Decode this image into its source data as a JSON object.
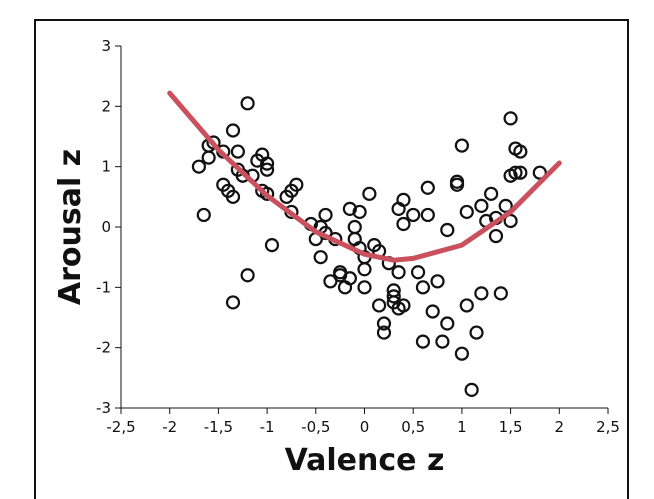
{
  "chart_data": {
    "type": "scatter",
    "xlabel": "Valence z",
    "ylabel": "Arousal z",
    "xlim": [
      -2.5,
      2.5
    ],
    "ylim": [
      -3,
      3
    ],
    "x_ticks": [
      "-2,5",
      "-2",
      "-1,5",
      "-1",
      "-0,5",
      "0",
      "0,5",
      "1",
      "1,5",
      "2",
      "2,5"
    ],
    "y_ticks": [
      "3",
      "2",
      "1",
      "0",
      "-1",
      "-2",
      "-3"
    ],
    "grid": false,
    "colors": {
      "points": "#111111",
      "fit_curve": "#c9505c"
    },
    "fit_curve": {
      "type": "quadratic",
      "points": [
        [
          -2.0,
          2.22
        ],
        [
          -1.5,
          1.28
        ],
        [
          -1.0,
          0.52
        ],
        [
          -0.5,
          -0.08
        ],
        [
          0.0,
          -0.45
        ],
        [
          0.3,
          -0.55
        ],
        [
          0.5,
          -0.52
        ],
        [
          1.0,
          -0.3
        ],
        [
          1.5,
          0.25
        ],
        [
          2.0,
          1.06
        ]
      ]
    },
    "points": [
      [
        -1.7,
        1.0
      ],
      [
        -1.65,
        0.2
      ],
      [
        -1.6,
        1.15
      ],
      [
        -1.6,
        1.35
      ],
      [
        -1.55,
        1.4
      ],
      [
        -1.45,
        0.7
      ],
      [
        -1.45,
        1.25
      ],
      [
        -1.4,
        0.6
      ],
      [
        -1.35,
        1.6
      ],
      [
        -1.35,
        0.5
      ],
      [
        -1.3,
        1.25
      ],
      [
        -1.3,
        0.95
      ],
      [
        -1.25,
        0.85
      ],
      [
        -1.2,
        2.05
      ],
      [
        -1.15,
        0.85
      ],
      [
        -1.1,
        1.1
      ],
      [
        -1.05,
        1.2
      ],
      [
        -1.05,
        0.6
      ],
      [
        -1.0,
        1.05
      ],
      [
        -1.0,
        0.95
      ],
      [
        -1.0,
        0.55
      ],
      [
        -1.35,
        -1.25
      ],
      [
        -1.2,
        -0.8
      ],
      [
        -0.95,
        -0.3
      ],
      [
        -0.8,
        0.5
      ],
      [
        -0.75,
        0.25
      ],
      [
        -0.75,
        0.6
      ],
      [
        -0.7,
        0.7
      ],
      [
        -0.55,
        0.05
      ],
      [
        -0.5,
        -0.2
      ],
      [
        -0.45,
        0.0
      ],
      [
        -0.45,
        -0.5
      ],
      [
        -0.4,
        0.2
      ],
      [
        -0.4,
        -0.1
      ],
      [
        -0.35,
        -0.9
      ],
      [
        -0.3,
        -0.2
      ],
      [
        -0.25,
        -0.75
      ],
      [
        -0.2,
        -1.0
      ],
      [
        -0.15,
        0.3
      ],
      [
        -0.15,
        -0.85
      ],
      [
        -0.1,
        0.0
      ],
      [
        -0.1,
        -0.2
      ],
      [
        -0.05,
        -0.35
      ],
      [
        -0.05,
        0.25
      ],
      [
        0.0,
        -0.5
      ],
      [
        0.0,
        -0.7
      ],
      [
        0.0,
        -1.0
      ],
      [
        0.05,
        0.55
      ],
      [
        0.1,
        -0.3
      ],
      [
        0.15,
        -0.4
      ],
      [
        0.15,
        -1.3
      ],
      [
        0.2,
        -1.75
      ],
      [
        0.2,
        -1.6
      ],
      [
        0.25,
        -0.6
      ],
      [
        0.3,
        -1.05
      ],
      [
        0.3,
        -1.15
      ],
      [
        0.3,
        -1.25
      ],
      [
        0.35,
        -1.35
      ],
      [
        0.35,
        0.3
      ],
      [
        0.35,
        -0.75
      ],
      [
        0.4,
        0.45
      ],
      [
        0.4,
        0.05
      ],
      [
        0.4,
        -1.3
      ],
      [
        0.5,
        0.2
      ],
      [
        0.55,
        -0.75
      ],
      [
        0.6,
        -1.0
      ],
      [
        0.6,
        -1.9
      ],
      [
        0.65,
        0.65
      ],
      [
        0.65,
        0.2
      ],
      [
        0.7,
        -1.4
      ],
      [
        0.75,
        -0.9
      ],
      [
        0.8,
        -1.9
      ],
      [
        0.85,
        -0.05
      ],
      [
        0.95,
        0.75
      ],
      [
        0.95,
        0.7
      ],
      [
        1.0,
        1.35
      ],
      [
        1.0,
        -2.1
      ],
      [
        1.05,
        0.25
      ],
      [
        1.05,
        -1.3
      ],
      [
        1.1,
        -2.7
      ],
      [
        1.15,
        -1.75
      ],
      [
        1.2,
        0.35
      ],
      [
        1.2,
        -1.1
      ],
      [
        1.25,
        0.1
      ],
      [
        1.3,
        0.55
      ],
      [
        1.35,
        -0.15
      ],
      [
        1.35,
        0.15
      ],
      [
        1.4,
        -1.1
      ],
      [
        1.45,
        0.35
      ],
      [
        1.5,
        1.8
      ],
      [
        1.5,
        0.85
      ],
      [
        1.5,
        0.1
      ],
      [
        1.55,
        1.3
      ],
      [
        1.55,
        0.9
      ],
      [
        1.6,
        1.25
      ],
      [
        1.6,
        0.9
      ],
      [
        1.8,
        0.9
      ],
      [
        -0.25,
        -0.8
      ],
      [
        0.85,
        -1.6
      ]
    ]
  }
}
